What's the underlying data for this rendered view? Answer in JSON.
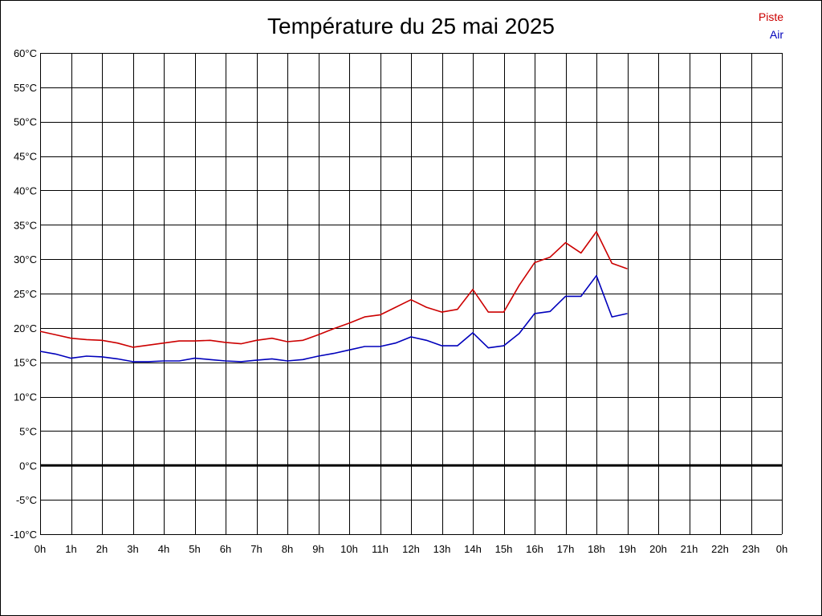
{
  "chart_data": {
    "type": "line",
    "title": "Température du 25 mai 2025",
    "legend_placement": "top-right",
    "grid": true,
    "x_tick_labels": [
      "0h",
      "1h",
      "2h",
      "3h",
      "4h",
      "5h",
      "6h",
      "7h",
      "8h",
      "9h",
      "10h",
      "11h",
      "12h",
      "13h",
      "14h",
      "15h",
      "16h",
      "17h",
      "18h",
      "19h",
      "20h",
      "21h",
      "22h",
      "23h",
      "0h"
    ],
    "y_tick_labels": [
      "60°C",
      "55°C",
      "50°C",
      "45°C",
      "40°C",
      "35°C",
      "30°C",
      "25°C",
      "20°C",
      "15°C",
      "10°C",
      "5°C",
      "0°C",
      "-5°C",
      "-10°C"
    ],
    "xlim": [
      0,
      24
    ],
    "ylim": [
      -10,
      60
    ],
    "x": [
      0,
      0.5,
      1,
      1.5,
      2,
      2.5,
      3,
      3.5,
      4,
      4.5,
      5,
      5.5,
      6,
      6.5,
      7,
      7.5,
      8,
      8.5,
      9,
      9.5,
      10,
      10.5,
      11,
      11.5,
      12,
      12.5,
      13,
      13.5,
      14,
      14.5,
      15,
      15.5,
      16,
      16.5,
      17,
      17.5,
      18,
      18.5,
      19
    ],
    "series": [
      {
        "name": "Piste",
        "color": "#cc0000",
        "values": [
          19.5,
          19.0,
          18.5,
          18.3,
          18.2,
          17.8,
          17.2,
          17.5,
          17.8,
          18.1,
          18.1,
          18.2,
          17.9,
          17.7,
          18.2,
          18.5,
          18.0,
          18.2,
          19.0,
          19.9,
          20.7,
          21.6,
          21.9,
          23.0,
          24.1,
          23.0,
          22.3,
          22.7,
          25.6,
          22.3,
          22.3,
          26.2,
          29.5,
          30.3,
          32.4,
          30.9,
          34.0,
          29.4,
          28.6
        ]
      },
      {
        "name": "Air",
        "color": "#0000bb",
        "values": [
          16.6,
          16.2,
          15.6,
          15.9,
          15.8,
          15.5,
          15.1,
          15.1,
          15.2,
          15.2,
          15.6,
          15.4,
          15.2,
          15.1,
          15.3,
          15.5,
          15.2,
          15.4,
          15.9,
          16.3,
          16.8,
          17.3,
          17.3,
          17.8,
          18.7,
          18.2,
          17.4,
          17.4,
          19.3,
          17.1,
          17.4,
          19.2,
          22.1,
          22.4,
          24.6,
          24.6,
          27.6,
          21.6,
          22.1
        ]
      }
    ]
  }
}
